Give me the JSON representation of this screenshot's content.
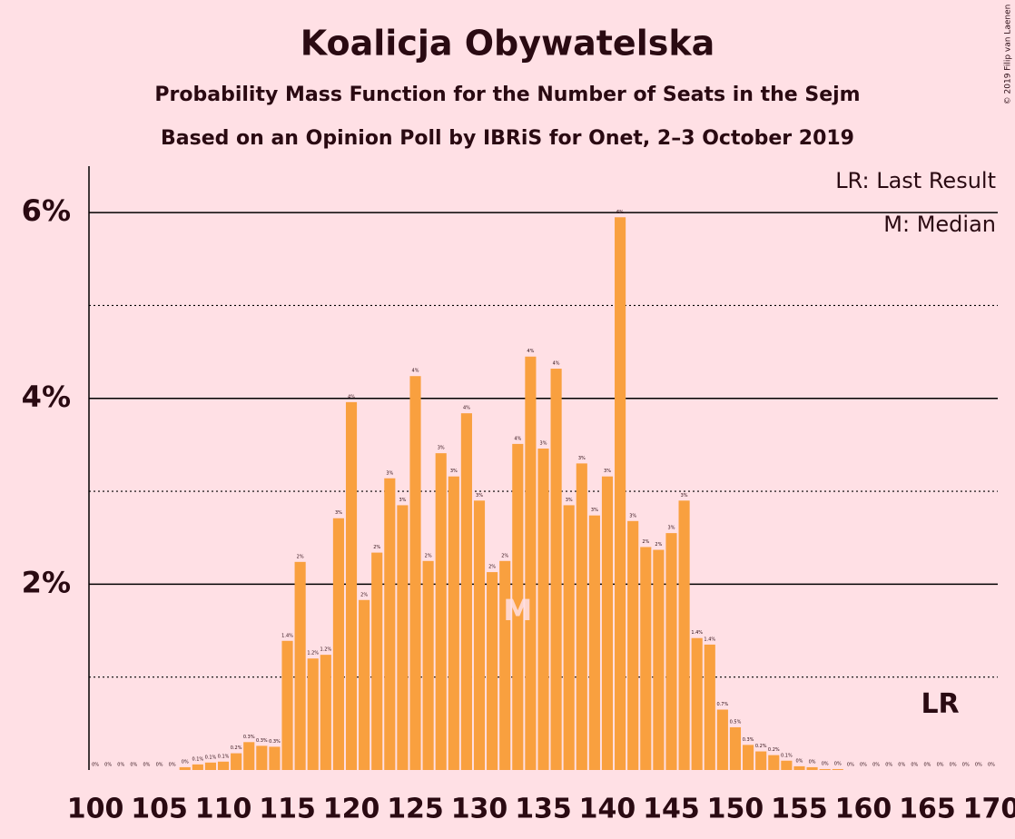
{
  "chart_data": {
    "type": "bar",
    "title": "Koalicja Obywatelska",
    "subtitle": "Probability Mass Function for the Number of Seats in the Sejm",
    "subtitle2": "Based on an Opinion Poll by IBRiS for Onet, 2–3 October 2019",
    "copyright": "© 2019 Filip van Laenen",
    "legend_lr": "LR: Last Result",
    "legend_m": "M: Median",
    "median": {
      "label": "M",
      "x": 133,
      "y": 1.7
    },
    "last_result": {
      "label": "LR",
      "x": 166,
      "y": 0.7
    },
    "color": "#f9a03f",
    "x": [
      100,
      101,
      102,
      103,
      104,
      105,
      106,
      107,
      108,
      109,
      110,
      111,
      112,
      113,
      114,
      115,
      116,
      117,
      118,
      119,
      120,
      121,
      122,
      123,
      124,
      125,
      126,
      127,
      128,
      129,
      130,
      131,
      132,
      133,
      134,
      135,
      136,
      137,
      138,
      139,
      140,
      141,
      142,
      143,
      144,
      145,
      146,
      147,
      148,
      149,
      150,
      151,
      152,
      153,
      154,
      155,
      156,
      157,
      158,
      159,
      160,
      161,
      162,
      163,
      164,
      165,
      166,
      167,
      168,
      169,
      170
    ],
    "values": [
      0,
      0,
      0,
      0,
      0,
      0,
      0,
      0.03,
      0.06,
      0.08,
      0.09,
      0.18,
      0.3,
      0.26,
      0.25,
      1.39,
      2.24,
      1.2,
      1.24,
      2.71,
      3.96,
      1.83,
      2.34,
      3.14,
      2.85,
      4.24,
      2.25,
      3.41,
      3.16,
      3.84,
      2.9,
      2.13,
      2.25,
      3.51,
      4.45,
      3.46,
      4.32,
      2.85,
      3.3,
      2.74,
      3.16,
      5.95,
      2.68,
      2.4,
      2.37,
      2.55,
      2.9,
      1.42,
      1.35,
      0.65,
      0.46,
      0.27,
      0.2,
      0.16,
      0.1,
      0.04,
      0.03,
      0.01,
      0.01,
      0,
      0,
      0,
      0,
      0,
      0,
      0,
      0,
      0,
      0,
      0,
      0
    ],
    "value_labels": [
      "0%",
      "0%",
      "0%",
      "0%",
      "0%",
      "0%",
      "0%",
      "0%",
      "0.1%",
      "0.1%",
      "0.1%",
      "0.2%",
      "0.3%",
      "0.3%",
      "0.3%",
      "1.4%",
      "2%",
      "1.2%",
      "1.2%",
      "3%",
      "4%",
      "2%",
      "2%",
      "3%",
      "3%",
      "4%",
      "2%",
      "3%",
      "3%",
      "4%",
      "3%",
      "2%",
      "2%",
      "4%",
      "4%",
      "3%",
      "4%",
      "3%",
      "3%",
      "3%",
      "3%",
      "6%",
      "3%",
      "2%",
      "2%",
      "3%",
      "3%",
      "1.4%",
      "1.4%",
      "0.7%",
      "0.5%",
      "0.3%",
      "0.2%",
      "0.2%",
      "0.1%",
      "0%",
      "0%",
      "0%",
      "0%",
      "0%",
      "0%",
      "0%",
      "0%",
      "0%",
      "0%",
      "0%",
      "0%",
      "0%",
      "0%",
      "0%",
      "0%"
    ],
    "xlim": [
      99.5,
      170.5
    ],
    "xticks": [
      100,
      105,
      110,
      115,
      120,
      125,
      130,
      135,
      140,
      145,
      150,
      155,
      160,
      165,
      170
    ],
    "ylim": [
      0,
      6.5
    ],
    "yticks": [
      {
        "value": 2,
        "label": "2%"
      },
      {
        "value": 4,
        "label": "4%"
      },
      {
        "value": 6,
        "label": "6%"
      }
    ],
    "minor_gridlines": [
      1,
      3,
      5
    ],
    "grid": true
  }
}
